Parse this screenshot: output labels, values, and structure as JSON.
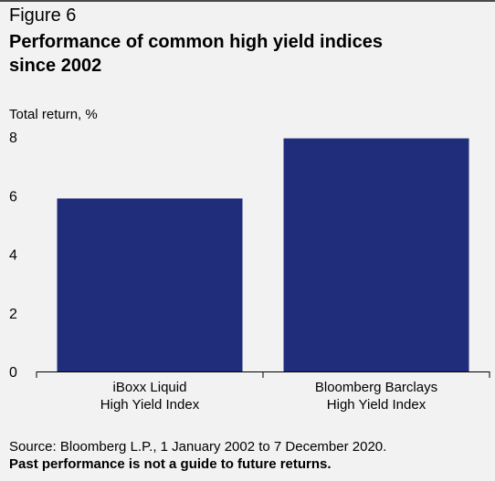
{
  "figure_label": "Figure 6",
  "title_line1": "Performance of common high yield indices",
  "title_line2": "since 2002",
  "source": "Source: Bloomberg L.P., 1 January 2002 to 7 December 2020.",
  "disclaimer": "Past performance is not a guide to future returns.",
  "colors": {
    "bar": "#1f2d7a",
    "background": "#f2f2f2",
    "axis": "#000000"
  },
  "chart_data": {
    "type": "bar",
    "ylabel": "Total return, %",
    "ylim": [
      0,
      8
    ],
    "yticks": [
      "0",
      "2",
      "4",
      "6",
      "8"
    ],
    "categories": [
      [
        "iBoxx Liquid",
        "High Yield Index"
      ],
      [
        "Bloomberg Barclays",
        "High Yield Index"
      ]
    ],
    "values": [
      5.9,
      7.95
    ],
    "grid": false
  }
}
